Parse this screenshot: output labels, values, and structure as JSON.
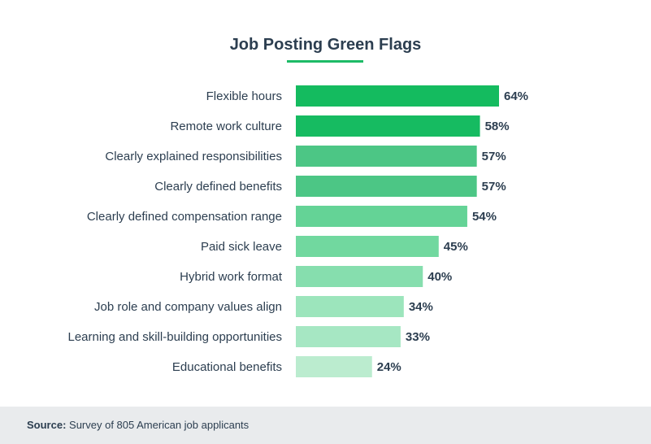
{
  "title": "Job Posting Green Flags",
  "colors": {
    "title_underline": "#1dbb67",
    "text": "#2c3e50",
    "footer_bg": "#e9ebed",
    "bars": [
      "#14bb5f",
      "#16bb61",
      "#4cc685",
      "#4cc685",
      "#64d396",
      "#71d89f",
      "#86deae",
      "#9ce5bc",
      "#a6e7c3",
      "#bbeccf"
    ]
  },
  "chart_data": {
    "type": "bar",
    "orientation": "horizontal",
    "categories": [
      "Flexible hours",
      "Remote work culture",
      "Clearly explained responsibilities",
      "Clearly defined benefits",
      "Clearly defined compensation range",
      "Paid sick leave",
      "Hybrid work format",
      "Job role and company values align",
      "Learning and skill-building opportunities",
      "Educational benefits"
    ],
    "values": [
      64,
      58,
      57,
      57,
      54,
      45,
      40,
      34,
      33,
      24
    ],
    "value_labels": [
      "64%",
      "58%",
      "57%",
      "57%",
      "54%",
      "45%",
      "40%",
      "34%",
      "33%",
      "24%"
    ],
    "title": "Job Posting Green Flags",
    "unit": "%",
    "xlim": [
      0,
      64
    ],
    "grid": false,
    "legend": "none"
  },
  "footer": {
    "source_label": "Source:",
    "source_text": "Survey of 805 American job applicants"
  }
}
